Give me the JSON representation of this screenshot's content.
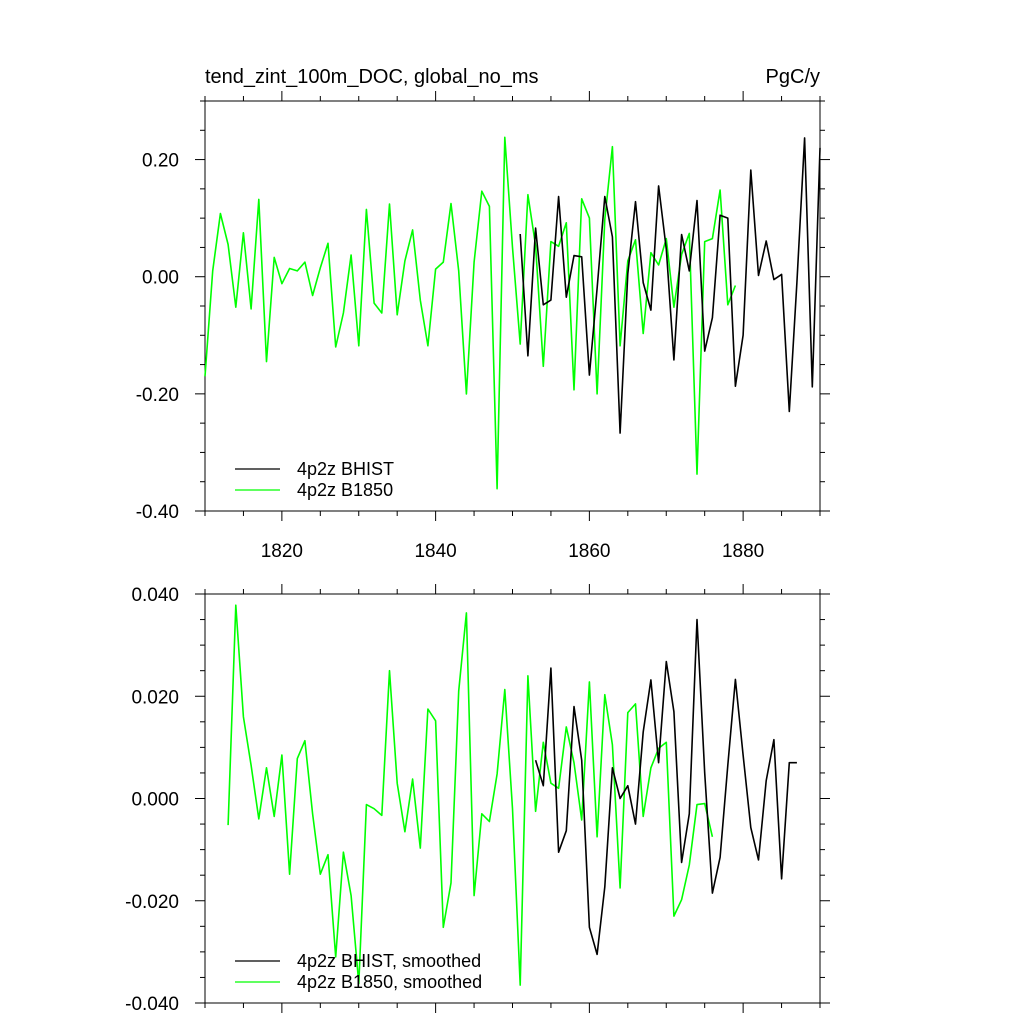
{
  "chart_data": [
    {
      "type": "line",
      "title_left": "tend_zint_100m_DOC, global_no_ms",
      "title_right": "PgC/y",
      "xlim": [
        1810,
        1890
      ],
      "ylim": [
        -0.4,
        0.3
      ],
      "x_ticks": [
        1820,
        1840,
        1860,
        1880
      ],
      "y_ticks": [
        -0.4,
        -0.2,
        0.0,
        0.2
      ],
      "y_tick_labels": [
        "-0.40",
        "-0.20",
        "0.00",
        "0.20"
      ],
      "legend_position": "bottom-left",
      "grid": false,
      "series": [
        {
          "name": "4p2z BHIST",
          "color": "#000000",
          "x": [
            1851,
            1852,
            1853,
            1854,
            1855,
            1856,
            1857,
            1858,
            1859,
            1860,
            1861,
            1862,
            1863,
            1864,
            1865,
            1866,
            1867,
            1868,
            1869,
            1870,
            1871,
            1872,
            1873,
            1874,
            1875,
            1876,
            1877,
            1878,
            1879,
            1880,
            1881,
            1882,
            1883,
            1884,
            1885,
            1886,
            1887,
            1888,
            1889,
            1890
          ],
          "y": [
            0.073,
            -0.135,
            0.083,
            -0.048,
            -0.04,
            0.137,
            -0.035,
            0.036,
            0.034,
            -0.168,
            -0.02,
            0.137,
            0.068,
            -0.267,
            0.005,
            0.128,
            -0.01,
            -0.057,
            0.155,
            0.047,
            -0.142,
            0.072,
            0.01,
            0.13,
            -0.127,
            -0.07,
            0.105,
            0.1,
            -0.187,
            -0.1,
            0.182,
            0.002,
            0.061,
            -0.005,
            0.004,
            -0.23,
            -0.01,
            0.237,
            -0.188,
            0.22
          ]
        },
        {
          "name": "4p2z B1850",
          "color": "#00ff00",
          "x": [
            1810,
            1811,
            1812,
            1813,
            1814,
            1815,
            1816,
            1817,
            1818,
            1819,
            1820,
            1821,
            1822,
            1823,
            1824,
            1825,
            1826,
            1827,
            1828,
            1829,
            1830,
            1831,
            1832,
            1833,
            1834,
            1835,
            1836,
            1837,
            1838,
            1839,
            1840,
            1841,
            1842,
            1843,
            1844,
            1845,
            1846,
            1847,
            1848,
            1849,
            1850,
            1851,
            1852,
            1853,
            1854,
            1855,
            1856,
            1857,
            1858,
            1859,
            1860,
            1861,
            1862,
            1863,
            1864,
            1865,
            1866,
            1867,
            1868,
            1869,
            1870,
            1871,
            1872,
            1873,
            1874,
            1875,
            1876,
            1877,
            1878,
            1879
          ],
          "y": [
            -0.17,
            0.01,
            0.108,
            0.055,
            -0.052,
            0.075,
            -0.055,
            0.132,
            -0.145,
            0.033,
            -0.012,
            0.014,
            0.01,
            0.025,
            -0.032,
            0.015,
            0.057,
            -0.12,
            -0.062,
            0.037,
            -0.118,
            0.115,
            -0.045,
            -0.062,
            0.124,
            -0.065,
            0.027,
            0.08,
            -0.04,
            -0.118,
            0.013,
            0.025,
            0.125,
            0.01,
            -0.2,
            0.025,
            0.146,
            0.12,
            -0.362,
            0.238,
            0.05,
            -0.115,
            0.14,
            0.053,
            -0.153,
            0.06,
            0.052,
            0.092,
            -0.193,
            0.133,
            0.1,
            -0.2,
            0.098,
            0.222,
            -0.118,
            0.027,
            0.063,
            -0.097,
            0.041,
            0.02,
            0.065,
            -0.052,
            0.038,
            0.074,
            -0.337,
            0.06,
            0.065,
            0.148,
            -0.048,
            -0.015
          ]
        }
      ]
    },
    {
      "type": "line",
      "xlim": [
        1810,
        1890
      ],
      "ylim": [
        -0.04,
        0.04
      ],
      "x_ticks": [
        1820,
        1840,
        1860,
        1880
      ],
      "y_ticks": [
        -0.04,
        -0.02,
        0.0,
        0.02,
        0.04
      ],
      "y_tick_labels": [
        "-0.040",
        "-0.020",
        "0.000",
        "0.020",
        "0.040"
      ],
      "legend_position": "bottom-left",
      "grid": false,
      "series": [
        {
          "name": "4p2z BHIST, smoothed",
          "color": "#000000",
          "x": [
            1853,
            1854,
            1855,
            1856,
            1857,
            1858,
            1859,
            1860,
            1861,
            1862,
            1863,
            1864,
            1865,
            1866,
            1867,
            1868,
            1869,
            1870,
            1871,
            1872,
            1873,
            1874,
            1875,
            1876,
            1877,
            1878,
            1879,
            1880,
            1881,
            1882,
            1883,
            1884,
            1885,
            1886,
            1887
          ],
          "y": [
            0.0075,
            0.0025,
            0.0255,
            -0.0105,
            -0.0063,
            0.018,
            0.0075,
            -0.0252,
            -0.0305,
            -0.0173,
            0.006,
            0.0,
            0.0025,
            -0.005,
            0.013,
            0.0232,
            0.007,
            0.0268,
            0.017,
            -0.0125,
            -0.003,
            0.035,
            0.005,
            -0.0185,
            -0.0115,
            0.0065,
            0.0233,
            0.0085,
            -0.0057,
            -0.012,
            0.0035,
            0.0115,
            -0.0157,
            0.007,
            0.007
          ]
        },
        {
          "name": "4p2z B1850, smoothed",
          "color": "#00ff00",
          "x": [
            1813,
            1814,
            1815,
            1816,
            1817,
            1818,
            1819,
            1820,
            1821,
            1822,
            1823,
            1824,
            1825,
            1826,
            1827,
            1828,
            1829,
            1830,
            1831,
            1832,
            1833,
            1834,
            1835,
            1836,
            1837,
            1838,
            1839,
            1840,
            1841,
            1842,
            1843,
            1844,
            1845,
            1846,
            1847,
            1848,
            1849,
            1850,
            1851,
            1852,
            1853,
            1854,
            1855,
            1856,
            1857,
            1858,
            1859,
            1860,
            1861,
            1862,
            1863,
            1864,
            1865,
            1866,
            1867,
            1868,
            1869,
            1870,
            1871,
            1872,
            1873,
            1874,
            1875,
            1876
          ],
          "y": [
            -0.0052,
            0.0378,
            0.016,
            0.0065,
            -0.004,
            0.006,
            -0.0035,
            0.0085,
            -0.0148,
            0.0078,
            0.0113,
            -0.003,
            -0.0148,
            -0.011,
            -0.031,
            -0.0105,
            -0.019,
            -0.0362,
            -0.0012,
            -0.002,
            -0.0033,
            0.025,
            0.003,
            -0.0065,
            0.0038,
            -0.0097,
            0.0175,
            0.0152,
            -0.0252,
            -0.0165,
            0.021,
            0.0363,
            -0.019,
            -0.003,
            -0.0045,
            0.0048,
            0.0213,
            -0.002,
            -0.0365,
            0.024,
            -0.0025,
            0.011,
            0.003,
            0.002,
            0.014,
            0.007,
            -0.0042,
            0.0228,
            -0.0075,
            0.0203,
            0.0105,
            -0.0175,
            0.0168,
            0.0185,
            -0.0035,
            0.006,
            0.0098,
            0.011,
            -0.023,
            -0.0198,
            -0.013,
            -0.0012,
            -0.001,
            -0.0075
          ]
        }
      ]
    }
  ]
}
